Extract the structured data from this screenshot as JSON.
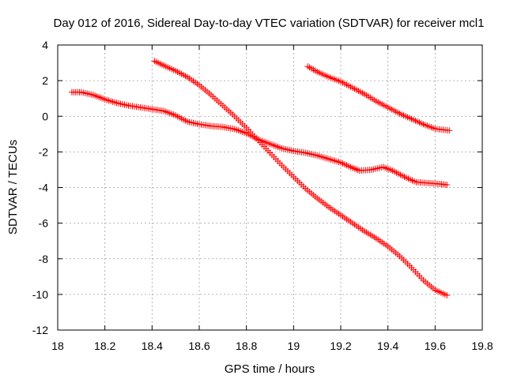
{
  "chart_data": {
    "type": "scatter",
    "title": "Day 012 of 2016, Sidereal Day-to-day VTEC variation (SDTVAR) for receiver mcl1",
    "xlabel": "GPS time / hours",
    "ylabel": "SDTVAR / TECUs",
    "xlim": [
      18,
      19.8
    ],
    "ylim": [
      -12,
      4
    ],
    "xticks": [
      "18",
      "18.2",
      "18.4",
      "18.6",
      "18.8",
      "19",
      "19.2",
      "19.4",
      "19.6",
      "19.8"
    ],
    "yticks": [
      "-12",
      "-10",
      "-8",
      "-6",
      "-4",
      "-2",
      "0",
      "2",
      "4"
    ],
    "grid": true,
    "marker": "+",
    "color": "#ff0000",
    "series": [
      {
        "name": "track-1",
        "points": [
          [
            18.06,
            1.35
          ],
          [
            18.1,
            1.35
          ],
          [
            18.15,
            1.2
          ],
          [
            18.2,
            0.95
          ],
          [
            18.25,
            0.75
          ],
          [
            18.3,
            0.6
          ],
          [
            18.35,
            0.5
          ],
          [
            18.4,
            0.4
          ],
          [
            18.45,
            0.3
          ],
          [
            18.5,
            0.05
          ],
          [
            18.55,
            -0.3
          ],
          [
            18.6,
            -0.45
          ],
          [
            18.65,
            -0.55
          ],
          [
            18.7,
            -0.6
          ],
          [
            18.75,
            -0.72
          ],
          [
            18.8,
            -0.95
          ],
          [
            18.85,
            -1.3
          ],
          [
            18.9,
            -1.55
          ],
          [
            18.95,
            -1.8
          ],
          [
            19.0,
            -1.95
          ],
          [
            19.05,
            -2.05
          ],
          [
            19.1,
            -2.2
          ],
          [
            19.15,
            -2.4
          ],
          [
            19.2,
            -2.6
          ],
          [
            19.25,
            -2.9
          ],
          [
            19.28,
            -3.05
          ],
          [
            19.33,
            -3.0
          ],
          [
            19.38,
            -2.85
          ],
          [
            19.42,
            -3.05
          ],
          [
            19.47,
            -3.4
          ],
          [
            19.52,
            -3.7
          ],
          [
            19.57,
            -3.75
          ],
          [
            19.62,
            -3.8
          ],
          [
            19.65,
            -3.85
          ]
        ]
      },
      {
        "name": "track-2",
        "points": [
          [
            18.41,
            3.1
          ],
          [
            18.45,
            2.85
          ],
          [
            18.5,
            2.55
          ],
          [
            18.55,
            2.2
          ],
          [
            18.6,
            1.75
          ],
          [
            18.65,
            1.2
          ],
          [
            18.7,
            0.6
          ],
          [
            18.75,
            0.0
          ],
          [
            18.8,
            -0.65
          ],
          [
            18.85,
            -1.35
          ],
          [
            18.9,
            -2.05
          ],
          [
            18.95,
            -2.75
          ],
          [
            19.0,
            -3.4
          ],
          [
            19.05,
            -4.05
          ],
          [
            19.1,
            -4.6
          ],
          [
            19.15,
            -5.1
          ],
          [
            19.2,
            -5.55
          ],
          [
            19.25,
            -6.0
          ],
          [
            19.3,
            -6.45
          ],
          [
            19.35,
            -6.85
          ],
          [
            19.4,
            -7.3
          ],
          [
            19.45,
            -7.85
          ],
          [
            19.5,
            -8.5
          ],
          [
            19.55,
            -9.2
          ],
          [
            19.6,
            -9.75
          ],
          [
            19.65,
            -10.05
          ]
        ]
      },
      {
        "name": "track-3",
        "points": [
          [
            19.06,
            2.8
          ],
          [
            19.1,
            2.5
          ],
          [
            19.15,
            2.2
          ],
          [
            19.2,
            1.95
          ],
          [
            19.25,
            1.6
          ],
          [
            19.3,
            1.25
          ],
          [
            19.35,
            0.85
          ],
          [
            19.4,
            0.5
          ],
          [
            19.45,
            0.15
          ],
          [
            19.5,
            -0.15
          ],
          [
            19.55,
            -0.45
          ],
          [
            19.6,
            -0.7
          ],
          [
            19.66,
            -0.8
          ]
        ]
      }
    ]
  }
}
